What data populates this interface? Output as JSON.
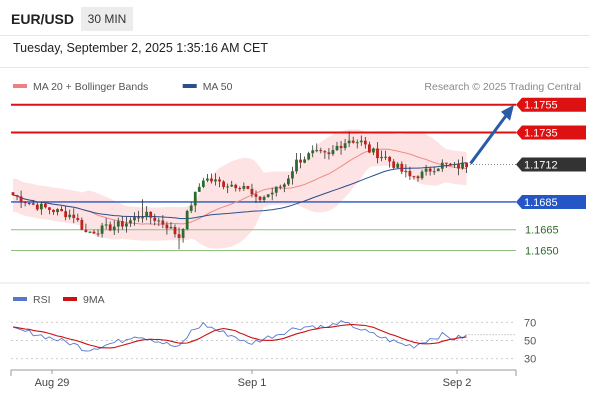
{
  "header": {
    "symbol": "EUR/USD",
    "timeframe": "30 MIN"
  },
  "timestamp": "Tuesday, September 2, 2025 1:35:16 AM CET",
  "legend": {
    "items": [
      {
        "label": "MA 20 + Bollinger Bands",
        "color": "#f08080"
      },
      {
        "label": "MA 50",
        "color": "#2a4f8f"
      }
    ],
    "credit": "Research © 2025 Trading Central"
  },
  "colors": {
    "up": "#2e6b2e",
    "down": "#c0211d",
    "resistance": "#dd1111",
    "support": "#2456c6",
    "minor_support": "#8fbf7f",
    "current": "#333333",
    "arrow": "#2a5aa8",
    "band_fill": "#fde3e3",
    "ma20": "#f08a8a",
    "ma50": "#2a4f8f",
    "rsi": "#5577cc",
    "rsi_ma": "#cc1111"
  },
  "chart_data": [
    {
      "type": "candlestick",
      "title": "EUR/USD 30 MIN",
      "ylim": [
        1.1636,
        1.1762
      ],
      "x_labels": [
        "Aug 29",
        "Sep 1",
        "Sep 2"
      ],
      "levels": [
        {
          "label": "1.1755",
          "value": 1.1755,
          "kind": "resistance"
        },
        {
          "label": "1.1735",
          "value": 1.1735,
          "kind": "resistance"
        },
        {
          "label": "1.1712",
          "value": 1.1712,
          "kind": "current"
        },
        {
          "label": "1.1685",
          "value": 1.1685,
          "kind": "support"
        },
        {
          "label": "1.1665",
          "value": 1.1665,
          "kind": "minor-support"
        },
        {
          "label": "1.1650",
          "value": 1.165,
          "kind": "minor-support"
        }
      ],
      "forecast_target": 1.1755,
      "close_anchors": [
        [
          0,
          1.169
        ],
        [
          5,
          1.1683
        ],
        [
          10,
          1.1679
        ],
        [
          15,
          1.1675
        ],
        [
          18,
          1.1663
        ],
        [
          23,
          1.1666
        ],
        [
          28,
          1.167
        ],
        [
          32,
          1.1676
        ],
        [
          35,
          1.1673
        ],
        [
          38,
          1.1668
        ],
        [
          41,
          1.166
        ],
        [
          44,
          1.1684
        ],
        [
          47,
          1.1702
        ],
        [
          52,
          1.1698
        ],
        [
          57,
          1.1697
        ],
        [
          60,
          1.1686
        ],
        [
          64,
          1.1692
        ],
        [
          67,
          1.1698
        ],
        [
          70,
          1.1714
        ],
        [
          74,
          1.172
        ],
        [
          78,
          1.1718
        ],
        [
          80,
          1.1725
        ],
        [
          83,
          1.173
        ],
        [
          86,
          1.1728
        ],
        [
          88,
          1.1722
        ],
        [
          92,
          1.1717
        ],
        [
          96,
          1.1707
        ],
        [
          98,
          1.1703
        ],
        [
          101,
          1.1705
        ],
        [
          104,
          1.171
        ],
        [
          106,
          1.1712
        ],
        [
          109,
          1.171
        ],
        [
          112,
          1.1712
        ]
      ]
    },
    {
      "type": "line",
      "title": "RSI",
      "series": [
        {
          "name": "RSI",
          "color": "#5577cc"
        },
        {
          "name": "9MA",
          "color": "#cc1111"
        }
      ],
      "yticks": [
        "70",
        "50",
        "30"
      ],
      "ylim": [
        22,
        78
      ],
      "rsi_anchors": [
        [
          0,
          62
        ],
        [
          5,
          58
        ],
        [
          10,
          52
        ],
        [
          15,
          46
        ],
        [
          18,
          40
        ],
        [
          22,
          44
        ],
        [
          27,
          50
        ],
        [
          30,
          56
        ],
        [
          34,
          52
        ],
        [
          38,
          46
        ],
        [
          41,
          42
        ],
        [
          44,
          60
        ],
        [
          47,
          68
        ],
        [
          51,
          60
        ],
        [
          55,
          54
        ],
        [
          58,
          46
        ],
        [
          62,
          52
        ],
        [
          66,
          58
        ],
        [
          70,
          64
        ],
        [
          74,
          66
        ],
        [
          78,
          64
        ],
        [
          80,
          70
        ],
        [
          84,
          66
        ],
        [
          88,
          58
        ],
        [
          92,
          52
        ],
        [
          96,
          46
        ],
        [
          99,
          44
        ],
        [
          103,
          52
        ],
        [
          106,
          56
        ],
        [
          109,
          52
        ],
        [
          112,
          55
        ]
      ]
    }
  ]
}
